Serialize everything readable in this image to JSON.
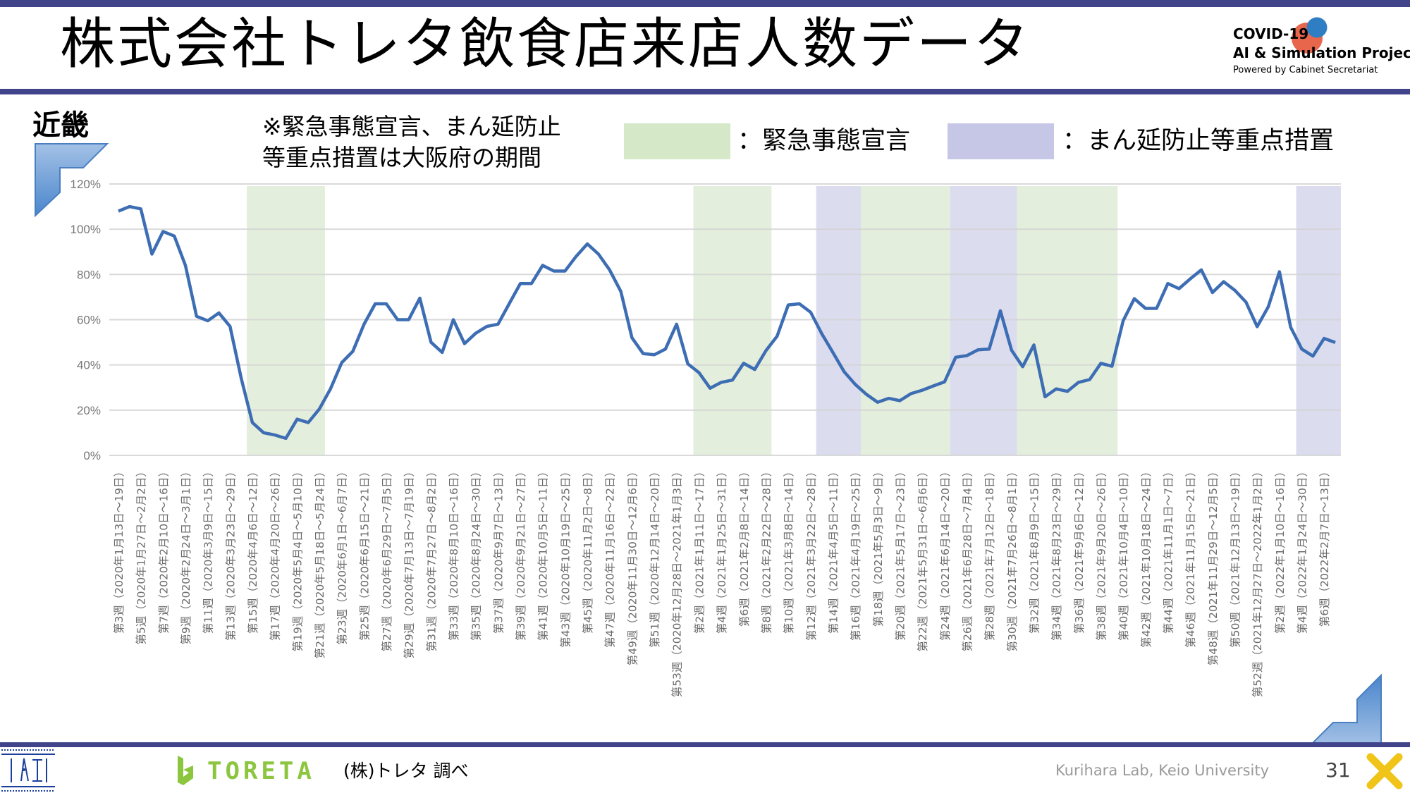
{
  "header": {
    "title": "株式会社トレタ飲食店来店人数データ",
    "logo": {
      "line1": "COVID-19",
      "line2": "AI & Simulation Project",
      "line3": "Powered by Cabinet Secretariat"
    }
  },
  "region": "近畿",
  "note": {
    "line1": "※緊急事態宣言、まん延防止",
    "line2": "等重点措置は大阪府の期間"
  },
  "legend": [
    {
      "label": "：緊急事態宣言",
      "color": "#d5e8c8"
    },
    {
      "label": "：まん延防止等重点措置",
      "color": "#c6c7e7"
    }
  ],
  "footer": {
    "toreta_logo": "TORETA",
    "source": "(株)トレタ 調べ",
    "lab": "Kurihara Lab, Keio University",
    "page_number": "31"
  },
  "colors": {
    "bar": "#41448a",
    "line": "#3d6db3",
    "emergency_band": "#e1ecd8",
    "priority_band": "#d7d8ec",
    "grid": "#d4d4d4"
  },
  "chart_data": {
    "type": "line",
    "title": "",
    "xlabel": "",
    "ylabel": "",
    "ylim": [
      0,
      120
    ],
    "yticks": [
      0,
      20,
      40,
      60,
      80,
      100,
      120
    ],
    "ytick_labels": [
      "0%",
      "20%",
      "40%",
      "60%",
      "80%",
      "100%",
      "120%"
    ],
    "grid": true,
    "x_tick_every": 2,
    "x_tick_labels": [
      "第3週（2020年1月13日～19日）",
      "第5週（2020年1月27日～2月2日）",
      "第7週（2020年2月10日～16日）",
      "第9週（2020年2月24日～3月1日）",
      "第11週（2020年3月9日～15日）",
      "第13週（2020年3月23日～29日）",
      "第15週（2020年4月6日～12日）",
      "第17週（2020年4月20日～26日）",
      "第19週（2020年5月4日～5月10日）",
      "第21週（2020年5月18日～5月24日）",
      "第23週（2020年6月1日～6月7日）",
      "第25週（2020年6月15日～21日）",
      "第27週（2020年6月29日～7月5日）",
      "第29週（2020年7月13日～7月19日）",
      "第31週（2020年7月27日～8月2日）",
      "第33週（2020年8月10日～16日）",
      "第35週（2020年8月24日～30日）",
      "第37週（2020年9月7日～13日）",
      "第39週（2020年9月21日～27日）",
      "第41週（2020年10月5日～11日）",
      "第43週（2020年10月19日～25日）",
      "第45週（2020年11月2日～8日）",
      "第47週（2020年11月16日～22日）",
      "第49週（2020年11月30日～12月6日）",
      "第51週（2020年12月14日～20日）",
      "第53週（2020年12月28日～2021年1月3日）",
      "第2週（2021年1月11日～17日）",
      "第4週（2021年1月25日～31日）",
      "第6週（2021年2月8日～14日）",
      "第8週（2021年2月22日～28日）",
      "第10週（2021年3月8日～14日）",
      "第12週（2021年3月22日～28日）",
      "第14週（2021年4月5日～11日）",
      "第16週（2021年4月19日～25日）",
      "第18週（2021年5月3日～9日）",
      "第20週（2021年5月17日～23日）",
      "第22週（2021年5月31日～6月6日）",
      "第24週（2021年6月14日～20日）",
      "第26週（2021年6月28日～7月4日）",
      "第28週（2021年7月12日～18日）",
      "第30週（2021年7月26日～8月1日）",
      "第32週（2021年8月9日～15日）",
      "第34週（2021年8月23日～29日）",
      "第36週（2021年9月6日～12日）",
      "第38週（2021年9月20日～26日）",
      "第40週（2021年10月4日～10日）",
      "第42週（2021年10月18日～24日）",
      "第44週（2021年11月1日～7日）",
      "第46週（2021年11月15日～21日）",
      "第48週（2021年11月29日～12月5日）",
      "第50週（2021年12月13日～19日）",
      "第52週（2021年12月27日～2022年1月2日）",
      "第2週（2022年1月10日～16日）",
      "第4週（2022年1月24日～30日）",
      "第6週（2022年2月7日～13日）"
    ],
    "series": [
      {
        "name": "来店人数",
        "values": [
          108,
          110,
          109,
          89,
          99,
          97,
          84,
          61.5,
          59.5,
          63,
          57,
          34,
          14.5,
          10,
          9,
          7.5,
          16,
          14.5,
          20.5,
          29.5,
          41,
          46,
          58,
          67,
          67,
          60,
          60,
          69.5,
          50,
          45.5,
          60,
          49.4,
          54,
          57,
          58,
          67,
          76,
          76,
          84,
          81.5,
          81.5,
          88,
          93.5,
          89,
          82,
          72.5,
          52,
          45,
          44.5,
          47,
          58,
          40.5,
          36.6,
          29.7,
          32.3,
          33.3,
          40.7,
          38,
          46.3,
          52.7,
          66.5,
          67,
          63.3,
          53.8,
          45.5,
          37,
          31.4,
          27,
          23.5,
          25.2,
          24.2,
          27.3,
          28.8,
          30.7,
          32.5,
          43.4,
          44.1,
          46.7,
          47,
          63.9,
          46.5,
          39.2,
          48.8,
          25.9,
          29.4,
          28.3,
          32.3,
          33.5,
          40.7,
          39.4,
          59.5,
          69.3,
          65,
          65,
          76,
          73.7,
          78,
          82,
          72,
          76.8,
          73,
          67.8,
          56.9,
          65.7,
          81.2,
          56.7,
          47,
          43.9,
          51.7,
          49.9
        ]
      }
    ],
    "bands": [
      {
        "type": "emergency",
        "start_index": 11.5,
        "end_index": 18.5
      },
      {
        "type": "emergency",
        "start_index": 51.5,
        "end_index": 58.5
      },
      {
        "type": "priority",
        "start_index": 62.5,
        "end_index": 66.5
      },
      {
        "type": "emergency",
        "start_index": 66.5,
        "end_index": 74.5
      },
      {
        "type": "priority",
        "start_index": 74.5,
        "end_index": 80.5
      },
      {
        "type": "emergency",
        "start_index": 80.5,
        "end_index": 89.5
      },
      {
        "type": "priority",
        "start_index": 105.5,
        "end_index": 109.5
      }
    ],
    "legend_position": "top-right"
  }
}
